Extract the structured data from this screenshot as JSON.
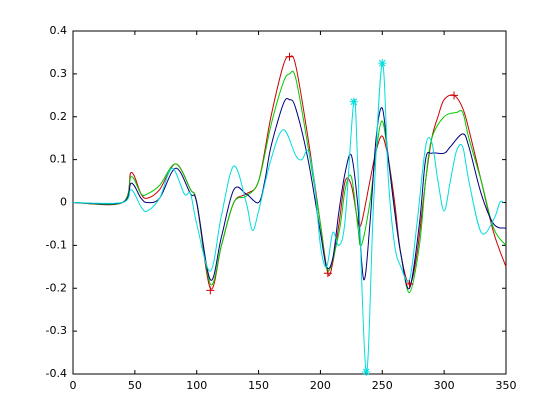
{
  "chart_data": {
    "type": "line",
    "xlim": [
      0,
      350
    ],
    "ylim": [
      -0.4,
      0.4
    ],
    "xticks": [
      0,
      50,
      100,
      150,
      200,
      250,
      300,
      350
    ],
    "yticks": [
      -0.4,
      -0.3,
      -0.2,
      -0.1,
      0,
      0.1,
      0.2,
      0.3,
      0.4
    ],
    "series": [
      {
        "color": "#cc0000",
        "x": [
          0,
          40,
          47,
          55,
          60,
          70,
          83,
          95,
          100,
          111,
          120,
          130,
          140,
          150,
          160,
          170,
          175,
          180,
          190,
          200,
          206,
          210,
          215,
          220,
          225,
          230,
          233,
          240,
          245,
          250,
          255,
          260,
          265,
          272,
          278,
          285,
          290,
          295,
          300,
          308,
          315,
          320,
          330,
          340,
          350
        ],
        "values": [
          0,
          0,
          0.07,
          0.02,
          0.01,
          0.03,
          0.09,
          0.03,
          0,
          -0.2,
          -0.1,
          0,
          0.02,
          0.05,
          0.2,
          0.32,
          0.34,
          0.32,
          0.15,
          -0.05,
          -0.165,
          -0.14,
          -0.05,
          0.05,
          0.04,
          -0.04,
          -0.05,
          0.05,
          0.12,
          0.155,
          0.1,
          0,
          -0.12,
          -0.19,
          -0.12,
          0.05,
          0.15,
          0.2,
          0.24,
          0.25,
          0.22,
          0.17,
          0.05,
          -0.07,
          -0.15
        ]
      },
      {
        "color": "#00cc00",
        "x": [
          0,
          40,
          47,
          55,
          60,
          70,
          83,
          95,
          100,
          111,
          120,
          130,
          140,
          150,
          160,
          170,
          175,
          180,
          190,
          200,
          206,
          215,
          220,
          225,
          230,
          233,
          240,
          245,
          250,
          255,
          260,
          265,
          272,
          280,
          285,
          290,
          300,
          310,
          315,
          320,
          330,
          340,
          350
        ],
        "values": [
          0,
          0,
          0.06,
          0.02,
          0.02,
          0.04,
          0.09,
          0.03,
          0,
          -0.19,
          -0.1,
          0,
          0.015,
          0.05,
          0.18,
          0.28,
          0.3,
          0.29,
          0.13,
          -0.05,
          -0.16,
          -0.07,
          0.03,
          0.06,
          -0.05,
          -0.1,
          0,
          0.12,
          0.19,
          0.1,
          -0.02,
          -0.12,
          -0.21,
          -0.1,
          0.05,
          0.15,
          0.2,
          0.21,
          0.21,
          0.15,
          0.05,
          -0.06,
          -0.1
        ]
      },
      {
        "color": "#000080",
        "x": [
          0,
          40,
          47,
          55,
          60,
          70,
          83,
          95,
          100,
          111,
          120,
          130,
          140,
          150,
          155,
          160,
          170,
          175,
          180,
          190,
          200,
          205,
          210,
          215,
          220,
          225,
          230,
          235,
          240,
          245,
          250,
          255,
          260,
          265,
          272,
          280,
          285,
          290,
          300,
          305,
          315,
          320,
          330,
          340,
          350
        ],
        "values": [
          0,
          0,
          0.045,
          0.01,
          0,
          0.01,
          0.08,
          0.02,
          0,
          -0.18,
          -0.08,
          0.03,
          0.02,
          0,
          0.05,
          0.13,
          0.23,
          0.24,
          0.22,
          0.1,
          -0.07,
          -0.15,
          -0.13,
          -0.02,
          0.07,
          0.11,
          0,
          -0.18,
          -0.05,
          0.15,
          0.22,
          0.1,
          -0.02,
          -0.12,
          -0.2,
          -0.05,
          0.1,
          0.115,
          0.115,
          0.13,
          0.16,
          0.13,
          0.02,
          -0.05,
          -0.06
        ]
      },
      {
        "color": "#00dddd",
        "x": [
          0,
          40,
          47,
          55,
          60,
          70,
          80,
          90,
          95,
          100,
          111,
          120,
          130,
          140,
          145,
          150,
          160,
          170,
          180,
          185,
          190,
          195,
          200,
          205,
          210,
          215,
          220,
          227,
          230,
          237,
          243,
          250,
          255,
          260,
          265,
          272,
          278,
          285,
          290,
          295,
          300,
          305,
          310,
          315,
          320,
          330,
          340,
          345,
          348
        ],
        "values": [
          0,
          0,
          0.03,
          -0.01,
          -0.02,
          0.01,
          0.08,
          0.02,
          0.02,
          -0.05,
          -0.16,
          -0.03,
          0.085,
          0,
          -0.065,
          -0.02,
          0.1,
          0.17,
          0.11,
          0.1,
          0.12,
          0.05,
          -0.1,
          -0.15,
          -0.07,
          -0.1,
          -0.04,
          0.235,
          0.1,
          -0.395,
          0,
          0.325,
          0.05,
          -0.1,
          -0.15,
          -0.18,
          -0.05,
          0.13,
          0.14,
          0.05,
          -0.02,
          0.05,
          0.12,
          0.13,
          0.05,
          -0.07,
          -0.04,
          0,
          0
        ]
      }
    ],
    "markers": [
      {
        "symbol": "+",
        "color": "#cc0000",
        "x": [
          111,
          175,
          206,
          272,
          308
        ],
        "values": [
          -0.205,
          0.34,
          -0.165,
          -0.19,
          0.25
        ]
      },
      {
        "symbol": "*",
        "color": "#00dddd",
        "x": [
          227,
          237,
          250
        ],
        "values": [
          0.235,
          -0.395,
          0.325
        ]
      }
    ]
  }
}
